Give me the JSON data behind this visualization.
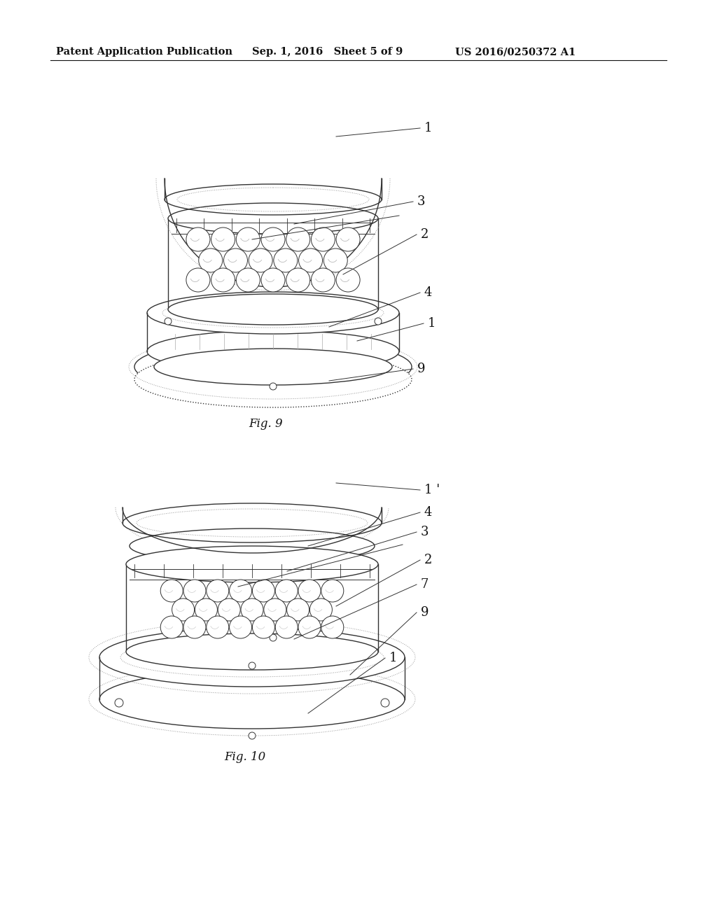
{
  "background_color": "#ffffff",
  "header_left": "Patent Application Publication",
  "header_mid": "Sep. 1, 2016   Sheet 5 of 9",
  "header_right": "US 2016/0250372 A1",
  "header_fontsize": 10.5,
  "fig9_label": "Fig. 9",
  "fig10_label": "Fig. 10",
  "line_color": "#333333",
  "dot_color": "#999999",
  "text_color": "#111111",
  "label_fontsize": 13
}
